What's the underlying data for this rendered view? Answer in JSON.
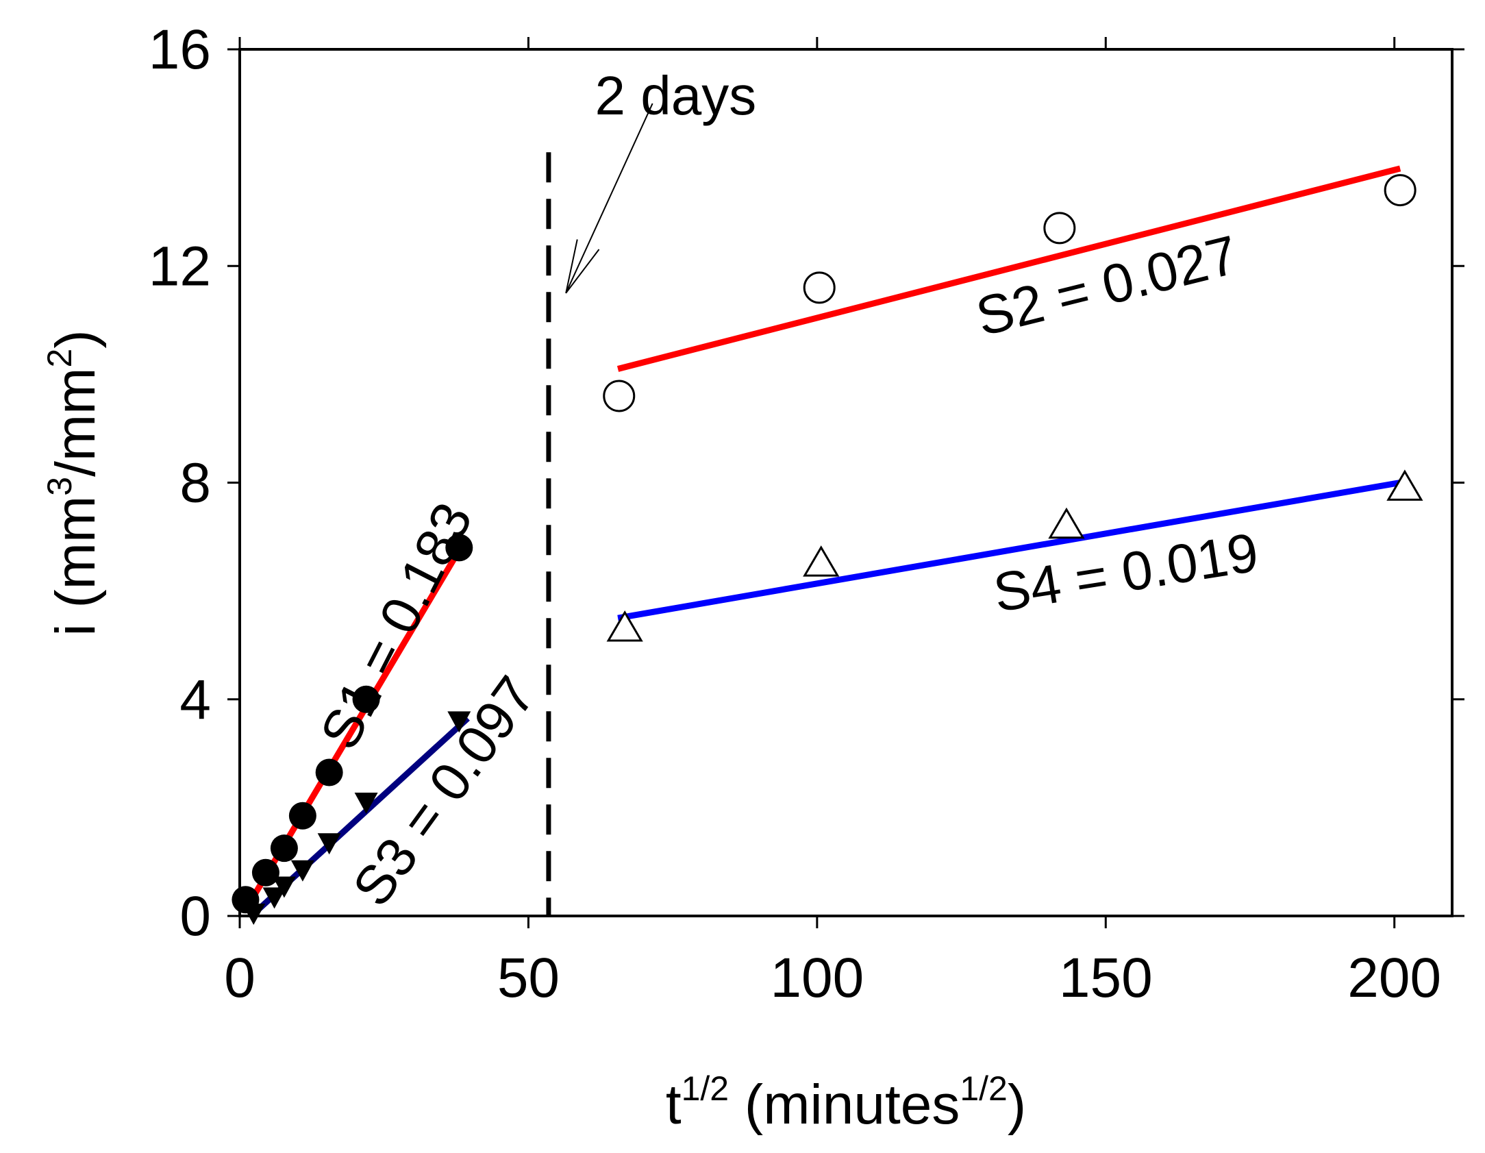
{
  "chart_data": {
    "type": "scatter",
    "title": "",
    "xlabel": {
      "base": "t",
      "base_sup": "1/2",
      "unit": "(minutes",
      "unit_sup": "1/2",
      "close": ")"
    },
    "ylabel": {
      "base": "i (mm",
      "sup1": "3",
      "mid": "/mm",
      "sup2": "2",
      "close": ")"
    },
    "xlim": [
      0,
      210
    ],
    "ylim": [
      0,
      16
    ],
    "xticks": [
      0,
      50,
      100,
      150,
      200
    ],
    "yticks": [
      0,
      4,
      8,
      12,
      16
    ],
    "xtick_labels": [
      "0",
      "50",
      "100",
      "150",
      "200"
    ],
    "ytick_labels": [
      "0",
      "4",
      "8",
      "12",
      "16"
    ],
    "grid": false,
    "series": [
      {
        "name": "S1",
        "marker": "filled-circle",
        "color": "#000000",
        "x": [
          1.0,
          4.5,
          7.7,
          10.9,
          15.5,
          21.9,
          38.0
        ],
        "y": [
          0.3,
          0.8,
          1.25,
          1.85,
          2.65,
          4.0,
          6.8
        ]
      },
      {
        "name": "S3",
        "marker": "filled-triangle-down",
        "color": "#000000",
        "x": [
          2.4,
          6.0,
          7.7,
          10.9,
          15.5,
          21.9,
          38.0
        ],
        "y": [
          0.05,
          0.35,
          0.55,
          0.85,
          1.35,
          2.1,
          3.6
        ]
      },
      {
        "name": "S2",
        "marker": "open-circle",
        "color": "#000000",
        "x": [
          65.7,
          100.4,
          142.0,
          201.0
        ],
        "y": [
          9.6,
          11.6,
          12.7,
          13.4
        ]
      },
      {
        "name": "S4",
        "marker": "open-triangle-up",
        "color": "#000000",
        "x": [
          66.7,
          100.7,
          143.2,
          201.8
        ],
        "y": [
          5.3,
          6.5,
          7.2,
          7.9
        ]
      }
    ],
    "fit_lines": [
      {
        "name": "S1 fit",
        "color": "#ff0000",
        "x": [
          1.5,
          38.0
        ],
        "y": [
          0.2,
          6.75
        ]
      },
      {
        "name": "S3 fit",
        "color": "#00007f",
        "x": [
          2.0,
          39.5
        ],
        "y": [
          0.0,
          3.65
        ]
      },
      {
        "name": "S2 fit",
        "color": "#ff0000",
        "x": [
          65.5,
          201.0
        ],
        "y": [
          10.1,
          13.8
        ]
      },
      {
        "name": "S4 fit",
        "color": "#0000ff",
        "x": [
          65.5,
          201.0
        ],
        "y": [
          5.5,
          8.0
        ]
      }
    ],
    "divider": {
      "x": 53.5,
      "y_top": 14.1,
      "style": "dashed",
      "color": "#000000"
    },
    "annotations": [
      {
        "name": "s1-label",
        "text": "S1 = 0.183",
        "x": 30.0,
        "y": 5.2,
        "rotate": -63
      },
      {
        "name": "s3-label",
        "text": "S3 = 0.097",
        "x": 38.0,
        "y": 2.1,
        "rotate": -54
      },
      {
        "name": "s2-label",
        "text": "S2 = 0.027",
        "x": 151.0,
        "y": 11.3,
        "rotate": -14
      },
      {
        "name": "s4-label",
        "text": "S4 = 0.019",
        "x": 154.0,
        "y": 6.0,
        "rotate": -9
      },
      {
        "name": "two-days-label",
        "text": "2 days",
        "x": 75.5,
        "y": 14.8,
        "rotate": 0
      }
    ],
    "arrow": {
      "from": [
        71.5,
        15.0
      ],
      "to": [
        56.5,
        11.5
      ]
    }
  }
}
